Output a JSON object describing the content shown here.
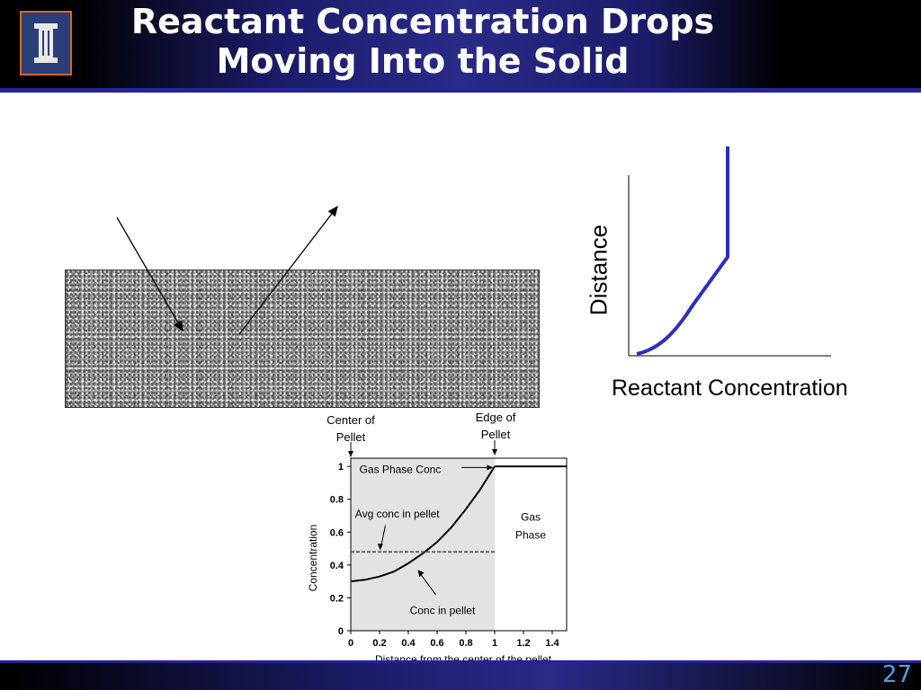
{
  "slide": {
    "title_line1": "Reactant Concentration Drops",
    "title_line2": "Moving Into the Solid",
    "slide_number": "27",
    "logo_glyph": "I"
  },
  "schematic": {
    "distance_label": "Distance",
    "reactant_label": "Reactant Concentration"
  },
  "pellet_labels": {
    "center_line1": "Center of",
    "center_line2": "Pellet",
    "edge_line1": "Edge of",
    "edge_line2": "Pellet"
  },
  "chart_data": {
    "type": "line",
    "xlabel": "Distance from the center of the pellet",
    "ylabel": "Concentration",
    "xlim": [
      0,
      1.5
    ],
    "ylim": [
      0,
      1.05
    ],
    "x_ticks": [
      "0",
      "0.2",
      "0.4",
      "0.6",
      "0.8",
      "1",
      "1.2",
      "1.4"
    ],
    "y_ticks": [
      "0",
      "0.2",
      "0.4",
      "0.6",
      "0.8",
      "1"
    ],
    "regions": [
      {
        "name": "pellet",
        "x": [
          0,
          1
        ],
        "fill": "#e3e3e3"
      }
    ],
    "series": [
      {
        "name": "Conc in pellet",
        "x": [
          0,
          0.1,
          0.2,
          0.3,
          0.4,
          0.5,
          0.6,
          0.7,
          0.8,
          0.9,
          1.0
        ],
        "y": [
          0.3,
          0.31,
          0.33,
          0.36,
          0.41,
          0.47,
          0.54,
          0.63,
          0.74,
          0.86,
          1.0
        ]
      },
      {
        "name": "Gas Phase Conc",
        "x": [
          1.0,
          1.5
        ],
        "y": [
          1.0,
          1.0
        ]
      },
      {
        "name": "Avg conc in pellet",
        "x": [
          0,
          1.0
        ],
        "y": [
          0.48,
          0.48
        ],
        "style": "dashed"
      }
    ],
    "annotations": {
      "gas_phase_conc": "Gas Phase Conc",
      "avg_conc": "Avg conc in pellet",
      "conc_in_pellet": "Conc in pellet",
      "gas_phase_line1": "Gas",
      "gas_phase_line2": "Phase"
    }
  }
}
